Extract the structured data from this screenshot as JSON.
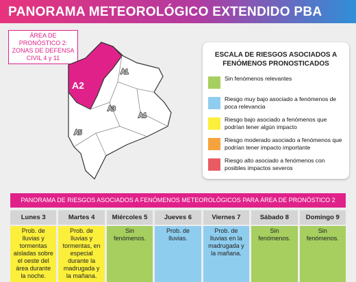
{
  "header": {
    "title": "PANORAMA METEOROLÓGICO EXTENDIDO PBA"
  },
  "area_label": "ÁREA DE PRONÓSTICO 2: ZONAS DE DEFENSA CIVIL 4 y 11",
  "map": {
    "regions": [
      {
        "label": "A1",
        "highlight": false
      },
      {
        "label": "A2",
        "highlight": true
      },
      {
        "label": "A3",
        "highlight": false
      },
      {
        "label": "A4",
        "highlight": false
      },
      {
        "label": "A5",
        "highlight": false
      }
    ]
  },
  "legend": {
    "title": "ESCALA DE RIESGOS ASOCIADOS A FENÓMENOS PRONOSTICADOS",
    "items": [
      {
        "label": "Sin fenómenos relevantes",
        "color": "#a6cf5f"
      },
      {
        "label": "Riesgo muy bajo asociado a fenómenos de poca relevancia",
        "color": "#8fcdef"
      },
      {
        "label": "Riesgo bajo asociado a fenómenos que podrían tener algún impacto",
        "color": "#fbef3c"
      },
      {
        "label": "Riesgo moderado asociado a fenómenos que podrían tener impacto importante",
        "color": "#f6a33d"
      },
      {
        "label": "Riesgo alto asociado a fenómenos con posibles impactos severos",
        "color": "#e95b63"
      }
    ]
  },
  "table": {
    "title": "PANORAMA DE RIESGOS ASOCIADOS A FENÓMENOS METEOROLÓGICOS PARA ÁREA DE PRONÓSTICO 2",
    "days": [
      {
        "name": "Lunes 3",
        "text": "Prob. de lluvias y tormentas aisladas sobre el oeste del área durante la noche.",
        "color": "#fbef3c"
      },
      {
        "name": "Martes 4",
        "text": "Prob. de lluvias y tormentas, en especial durante la madrugada y la mañana.",
        "color": "#fbef3c"
      },
      {
        "name": "Miércoles 5",
        "text": "Sin fenómenos.",
        "color": "#a6cf5f"
      },
      {
        "name": "Jueves 6",
        "text": "Prob. de lluvias.",
        "color": "#8fcdef"
      },
      {
        "name": "Viernes 7",
        "text": "Prob. de lluvias en la madrugada y la mañana.",
        "color": "#8fcdef"
      },
      {
        "name": "Sábado 8",
        "text": "Sin fenómenos.",
        "color": "#a6cf5f"
      },
      {
        "name": "Domingo 9",
        "text": "Sin fenómenos.",
        "color": "#a6cf5f"
      }
    ]
  }
}
